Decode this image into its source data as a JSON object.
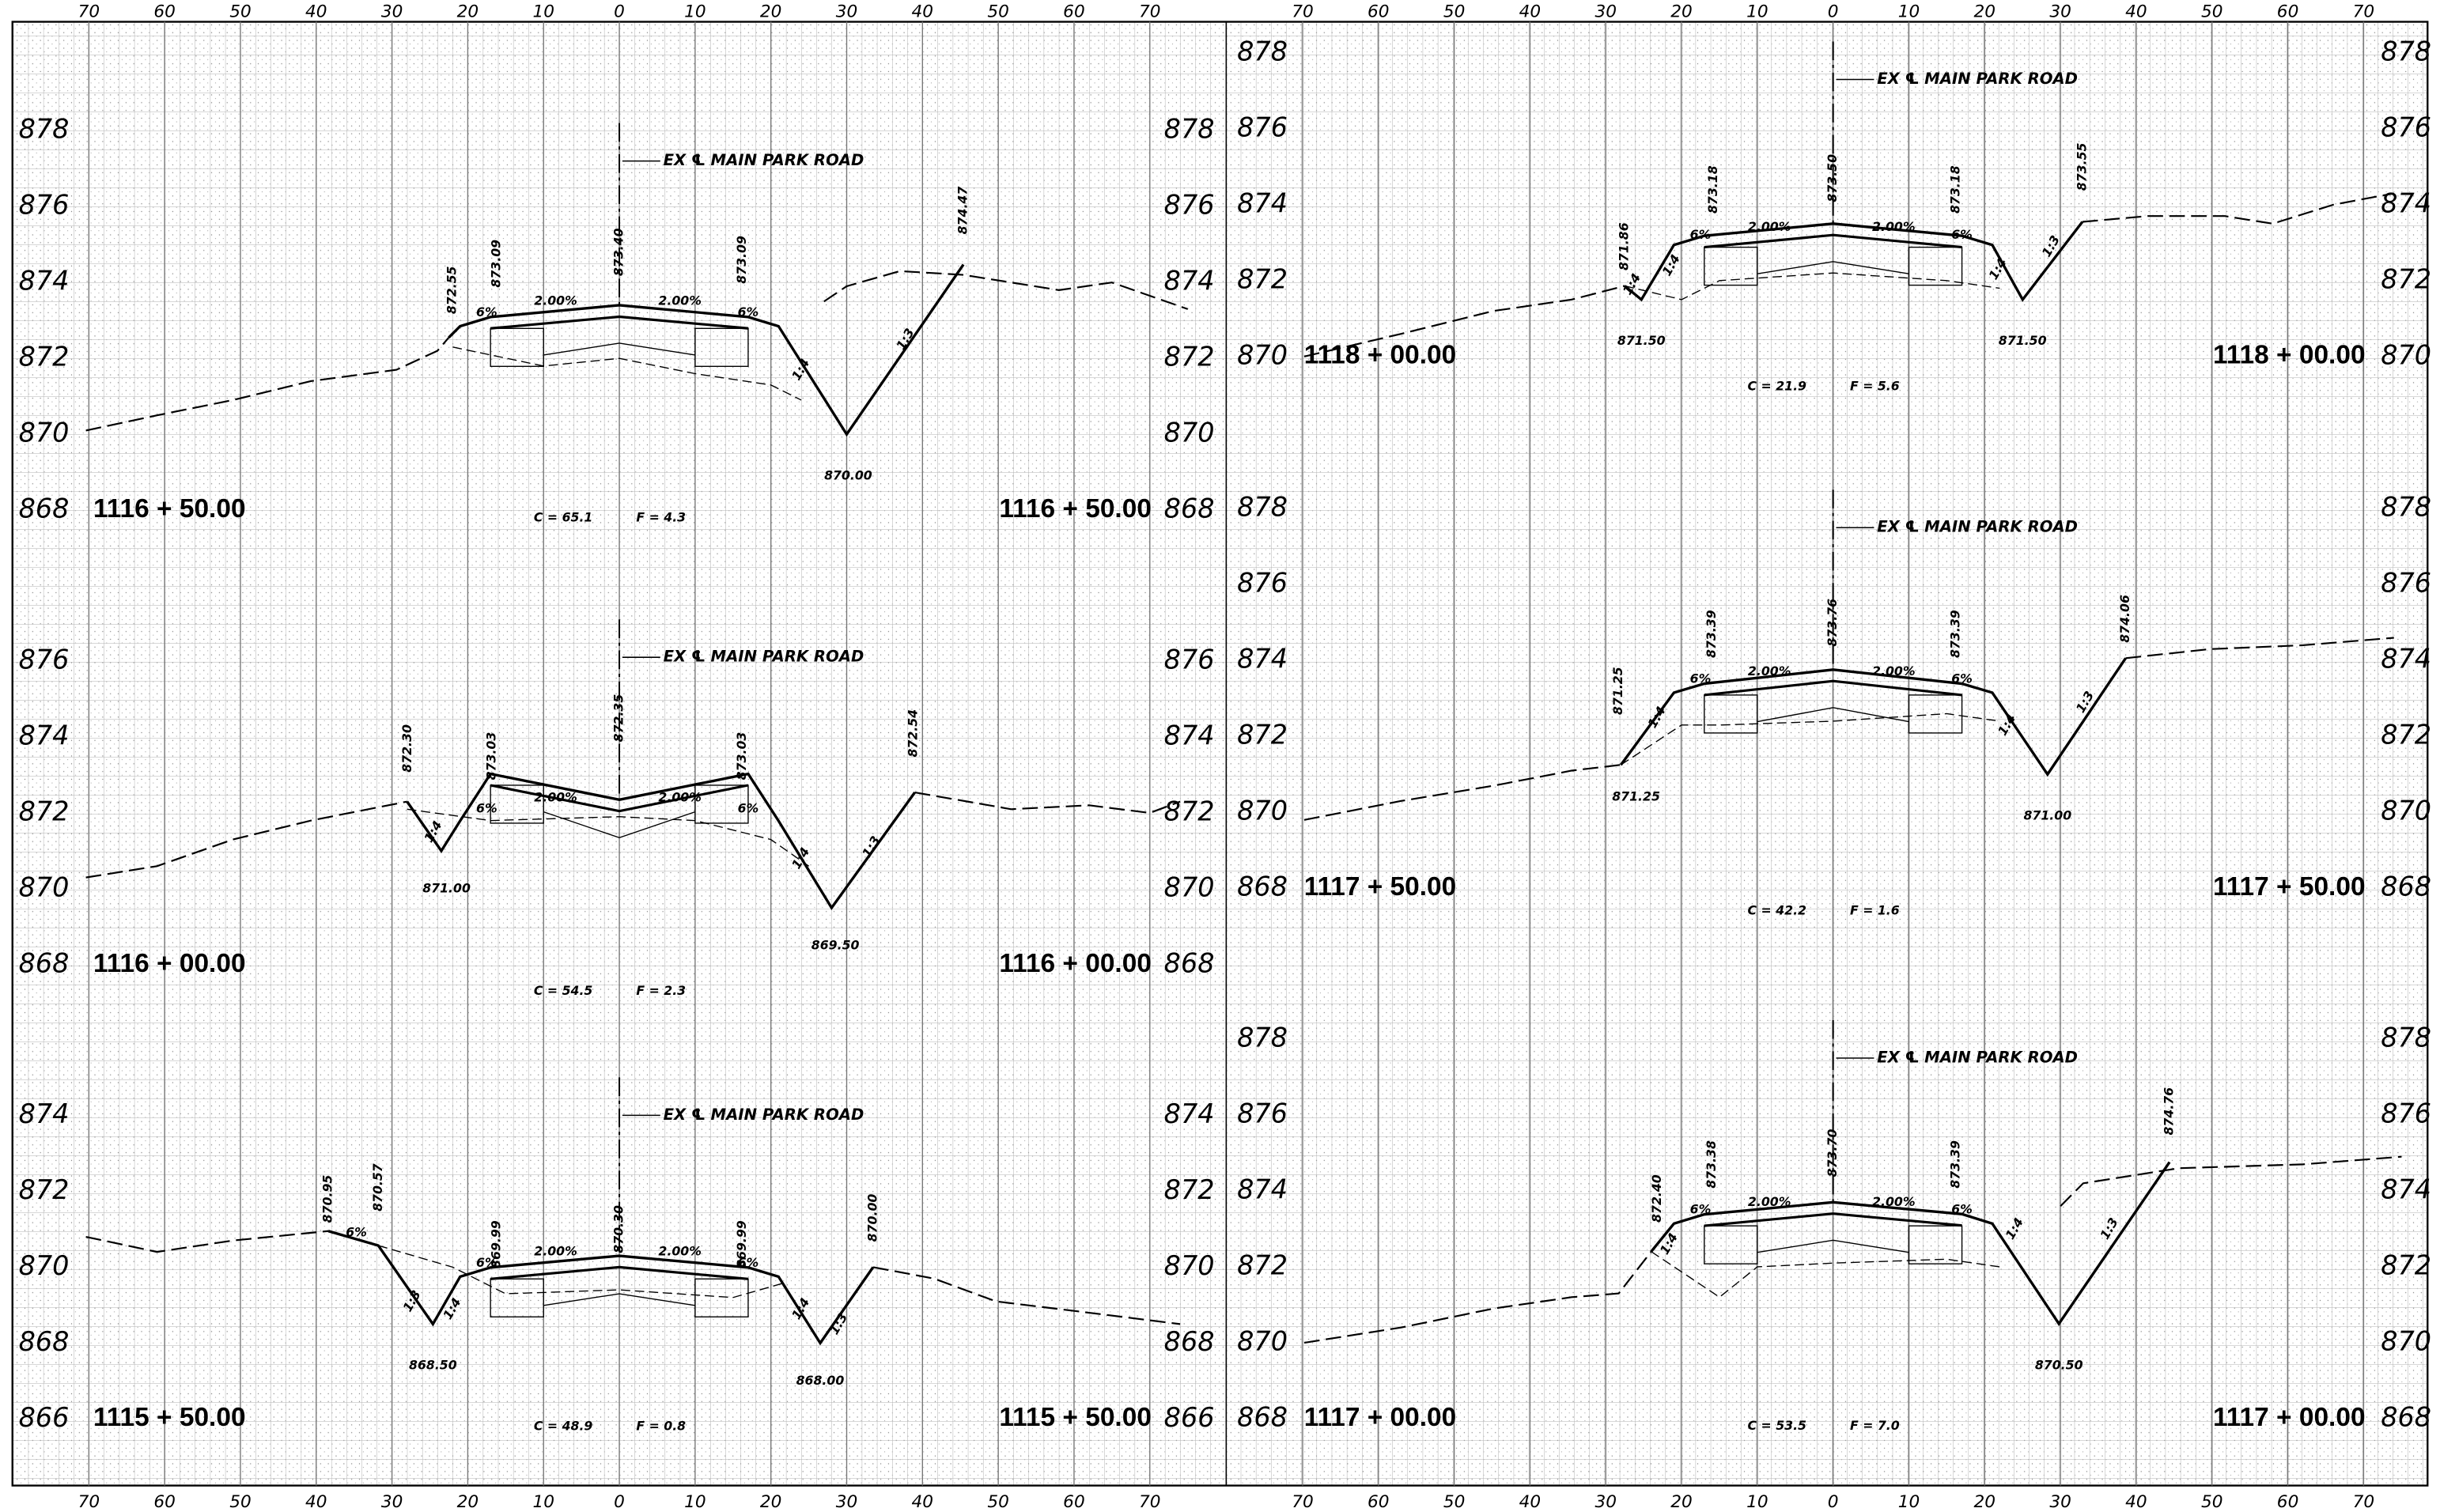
{
  "offset_ticks": [
    {
      "value": -70,
      "label": "70"
    },
    {
      "value": -60,
      "label": "60"
    },
    {
      "value": -50,
      "label": "50"
    },
    {
      "value": -40,
      "label": "40"
    },
    {
      "value": -30,
      "label": "30"
    },
    {
      "value": -20,
      "label": "20"
    },
    {
      "value": -10,
      "label": "10"
    },
    0,
    10,
    20,
    30,
    40,
    50,
    60,
    70
  ],
  "sections": [
    {
      "station": "1116 + 50.00",
      "elevation_labels": [
        878,
        876,
        874,
        872,
        870,
        868
      ],
      "centerline_label": "EX ℄ MAIN PARK ROAD",
      "callouts": [
        "872.55",
        "873.09",
        "873.40",
        "873.09",
        "874.47",
        "870.00",
        "6%",
        "2.00%",
        "2.00%",
        "6%",
        "1:4",
        "1:3"
      ],
      "cut": "C = 65.1",
      "fill": "F = 4.3"
    },
    {
      "station": "1116 + 00.00",
      "elevation_labels": [
        876,
        874,
        872,
        870,
        868
      ],
      "centerline_label": "EX ℄ MAIN PARK ROAD",
      "callouts": [
        "872.30",
        "873.03",
        "872.35",
        "873.03",
        "872.54",
        "871.00",
        "869.50",
        "6%",
        "2.00%",
        "2.00%",
        "6%",
        "1:4",
        "1:4",
        "1:3"
      ],
      "cut": "C = 54.5",
      "fill": "F = 2.3"
    },
    {
      "station": "1115 + 50.00",
      "elevation_labels": [
        874,
        872,
        870,
        868,
        866
      ],
      "centerline_label": "EX ℄ MAIN PARK ROAD",
      "callouts": [
        "870.95",
        "870.57",
        "869.99",
        "870.30",
        "869.99",
        "870.00",
        "868.50",
        "868.00",
        "6%",
        "6%",
        "2.00%",
        "2.00%",
        "6%",
        "1:3",
        "1:4",
        "1:4",
        "1:3"
      ],
      "cut": "C = 48.9",
      "fill": "F = 0.8"
    },
    {
      "station": "1118 + 00.00",
      "elevation_labels": [
        878,
        876,
        874,
        872,
        870
      ],
      "centerline_label": "EX ℄ MAIN PARK ROAD",
      "callouts": [
        "871.86",
        "873.18",
        "873.50",
        "873.18",
        "873.55",
        "871.50",
        "871.50",
        "6%",
        "2.00%",
        "2.00%",
        "6%",
        "1:4",
        "1:4",
        "1:4",
        "1:3"
      ],
      "cut": "C = 21.9",
      "fill": "F = 5.6"
    },
    {
      "station": "1117 + 50.00",
      "elevation_labels": [
        878,
        876,
        874,
        872,
        870,
        868
      ],
      "centerline_label": "EX ℄ MAIN PARK ROAD",
      "callouts": [
        "871.25",
        "873.39",
        "873.76",
        "873.39",
        "874.06",
        "871.25",
        "871.00",
        "6%",
        "2.00%",
        "2.00%",
        "6%",
        "1:4",
        "1:4",
        "1:3"
      ],
      "cut": "C = 42.2",
      "fill": "F = 1.6"
    },
    {
      "station": "1117 + 00.00",
      "elevation_labels": [
        878,
        876,
        874,
        872,
        870,
        868
      ],
      "centerline_label": "EX ℄ MAIN PARK ROAD",
      "callouts": [
        "872.40",
        "873.38",
        "873.70",
        "873.39",
        "874.76",
        "870.50",
        "6%",
        "2.00%",
        "2.00%",
        "6%",
        "1:4",
        "1:4",
        "1:3"
      ],
      "cut": "C = 53.5",
      "fill": "F = 7.0"
    }
  ]
}
